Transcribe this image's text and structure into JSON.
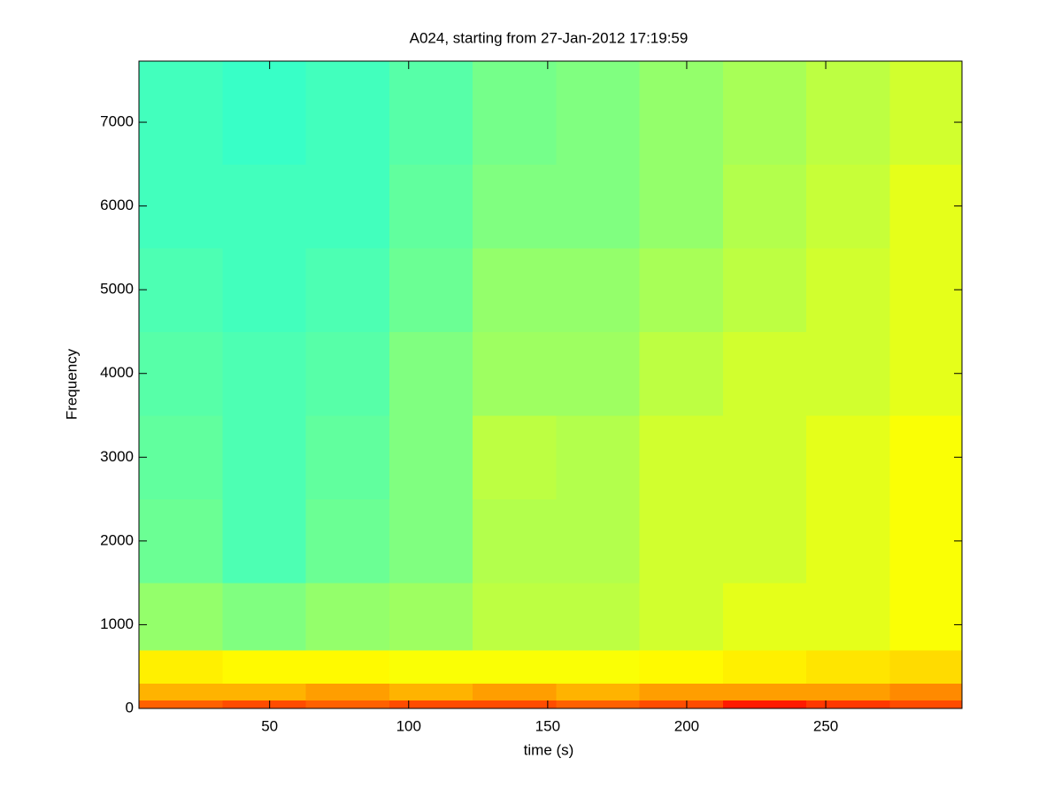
{
  "chart_data": {
    "type": "heatmap",
    "title": "A024, starting from 27-Jan-2012 17:19:59",
    "x_label": "time (s)",
    "y_label": "Frequency",
    "colormap": "jet",
    "clim": [
      0,
      1
    ],
    "x_edges": [
      3,
      33,
      63,
      93,
      123,
      153,
      183,
      213,
      243,
      273,
      299
    ],
    "y_edges": [
      0,
      100,
      300,
      700,
      1500,
      2500,
      3500,
      4500,
      5500,
      6500,
      7730
    ],
    "z": [
      [
        0.78,
        0.8,
        0.78,
        0.8,
        0.8,
        0.78,
        0.8,
        0.85,
        0.82,
        0.8
      ],
      [
        0.7,
        0.7,
        0.72,
        0.7,
        0.72,
        0.7,
        0.72,
        0.72,
        0.72,
        0.74
      ],
      [
        0.64,
        0.63,
        0.63,
        0.62,
        0.62,
        0.62,
        0.63,
        0.64,
        0.65,
        0.66
      ],
      [
        0.52,
        0.5,
        0.52,
        0.53,
        0.56,
        0.56,
        0.58,
        0.6,
        0.6,
        0.62
      ],
      [
        0.48,
        0.45,
        0.48,
        0.5,
        0.55,
        0.55,
        0.58,
        0.58,
        0.6,
        0.62
      ],
      [
        0.47,
        0.45,
        0.47,
        0.5,
        0.56,
        0.55,
        0.58,
        0.58,
        0.6,
        0.62
      ],
      [
        0.46,
        0.45,
        0.46,
        0.5,
        0.53,
        0.53,
        0.56,
        0.58,
        0.58,
        0.6
      ],
      [
        0.45,
        0.44,
        0.45,
        0.48,
        0.52,
        0.52,
        0.54,
        0.56,
        0.58,
        0.6
      ],
      [
        0.44,
        0.44,
        0.44,
        0.47,
        0.5,
        0.5,
        0.52,
        0.55,
        0.57,
        0.6
      ],
      [
        0.44,
        0.43,
        0.44,
        0.46,
        0.49,
        0.5,
        0.52,
        0.54,
        0.56,
        0.58
      ]
    ],
    "xlim": [
      3,
      299
    ],
    "xticks": [
      50,
      100,
      150,
      200,
      250
    ],
    "ylim": [
      0,
      7730
    ],
    "yticks": [
      0,
      1000,
      2000,
      3000,
      4000,
      5000,
      6000,
      7000
    ]
  }
}
